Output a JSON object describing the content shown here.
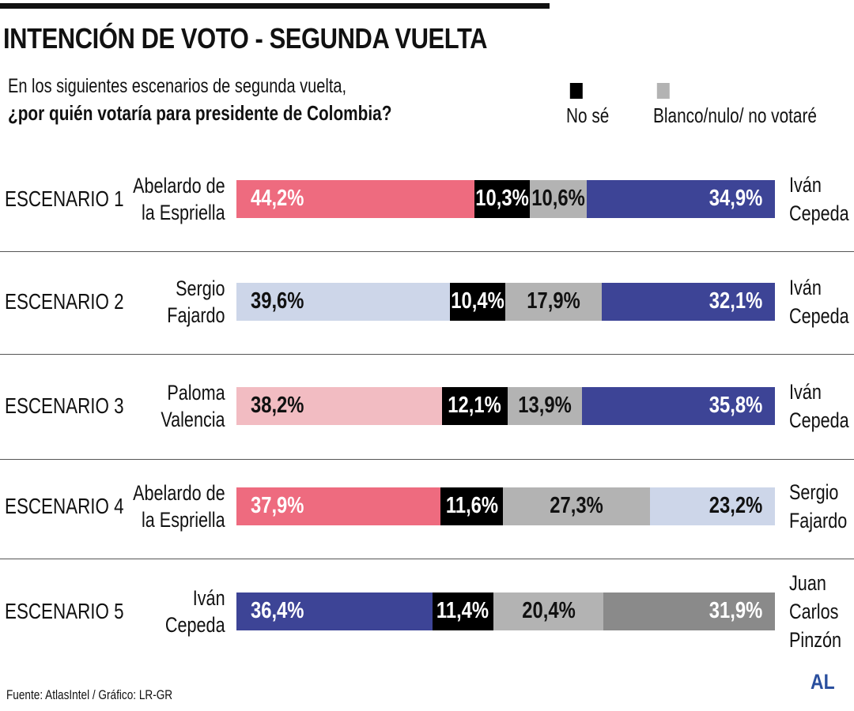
{
  "chart_data": {
    "type": "bar",
    "orientation": "horizontal-stacked",
    "title": "INTENCIÓN DE VOTO - SEGUNDA VUELTA",
    "subtitle_line1": "En los siguientes escenarios de segunda vuelta,",
    "subtitle_line2": "¿por quién votaría para presidente de Colombia?",
    "legend": [
      {
        "label": "No sé",
        "color": "#000000"
      },
      {
        "label": "Blanco/nulo/ no votaré",
        "color": "#b3b3b3"
      }
    ],
    "legend_placement": "top-right",
    "scenarios": [
      {
        "label": "ESCENARIO 1",
        "left": "Abelardo de\nla Espriella",
        "right": "Iván\nCepeda",
        "segments": [
          {
            "value": 44.2,
            "text": "44,2%",
            "color": "#ee6b7f",
            "fg": "#ffffff"
          },
          {
            "value": 10.3,
            "text": "10,3%",
            "color": "#000000",
            "fg": "#ffffff"
          },
          {
            "value": 10.6,
            "text": "10,6%",
            "color": "#b3b3b3",
            "fg": "#111111"
          },
          {
            "value": 34.9,
            "text": "34,9%",
            "color": "#3d4496",
            "fg": "#ffffff"
          }
        ]
      },
      {
        "label": "ESCENARIO 2",
        "left": "Sergio\nFajardo",
        "right": "Iván\nCepeda",
        "segments": [
          {
            "value": 39.6,
            "text": "39,6%",
            "color": "#cdd6e9",
            "fg": "#111111"
          },
          {
            "value": 10.4,
            "text": "10,4%",
            "color": "#000000",
            "fg": "#ffffff"
          },
          {
            "value": 17.9,
            "text": "17,9%",
            "color": "#b3b3b3",
            "fg": "#111111"
          },
          {
            "value": 32.1,
            "text": "32,1%",
            "color": "#3d4496",
            "fg": "#ffffff"
          }
        ]
      },
      {
        "label": "ESCENARIO 3",
        "left": "Paloma\nValencia",
        "right": "Iván\nCepeda",
        "segments": [
          {
            "value": 38.2,
            "text": "38,2%",
            "color": "#f2bcc2",
            "fg": "#111111"
          },
          {
            "value": 12.1,
            "text": "12,1%",
            "color": "#000000",
            "fg": "#ffffff"
          },
          {
            "value": 13.9,
            "text": "13,9%",
            "color": "#b3b3b3",
            "fg": "#111111"
          },
          {
            "value": 35.8,
            "text": "35,8%",
            "color": "#3d4496",
            "fg": "#ffffff"
          }
        ]
      },
      {
        "label": "ESCENARIO 4",
        "left": "Abelardo de\nla Espriella",
        "right": "Sergio\nFajardo",
        "segments": [
          {
            "value": 37.9,
            "text": "37,9%",
            "color": "#ee6b7f",
            "fg": "#ffffff"
          },
          {
            "value": 11.6,
            "text": "11,6%",
            "color": "#000000",
            "fg": "#ffffff"
          },
          {
            "value": 27.3,
            "text": "27,3%",
            "color": "#b3b3b3",
            "fg": "#111111"
          },
          {
            "value": 23.2,
            "text": "23,2%",
            "color": "#cdd6e9",
            "fg": "#111111"
          }
        ]
      },
      {
        "label": "ESCENARIO 5",
        "left": "Iván\nCepeda",
        "right": "Juan\nCarlos\nPinzón",
        "segments": [
          {
            "value": 36.4,
            "text": "36,4%",
            "color": "#3d4496",
            "fg": "#ffffff"
          },
          {
            "value": 11.4,
            "text": "11,4%",
            "color": "#000000",
            "fg": "#ffffff"
          },
          {
            "value": 20.4,
            "text": "20,4%",
            "color": "#b3b3b3",
            "fg": "#111111"
          },
          {
            "value": 31.9,
            "text": "31,9%",
            "color": "#8a8a8a",
            "fg": "#ffffff"
          }
        ]
      }
    ]
  },
  "footer": {
    "source": "Fuente: AtlasIntel / Gráfico: LR-GR",
    "logo": "AL"
  }
}
